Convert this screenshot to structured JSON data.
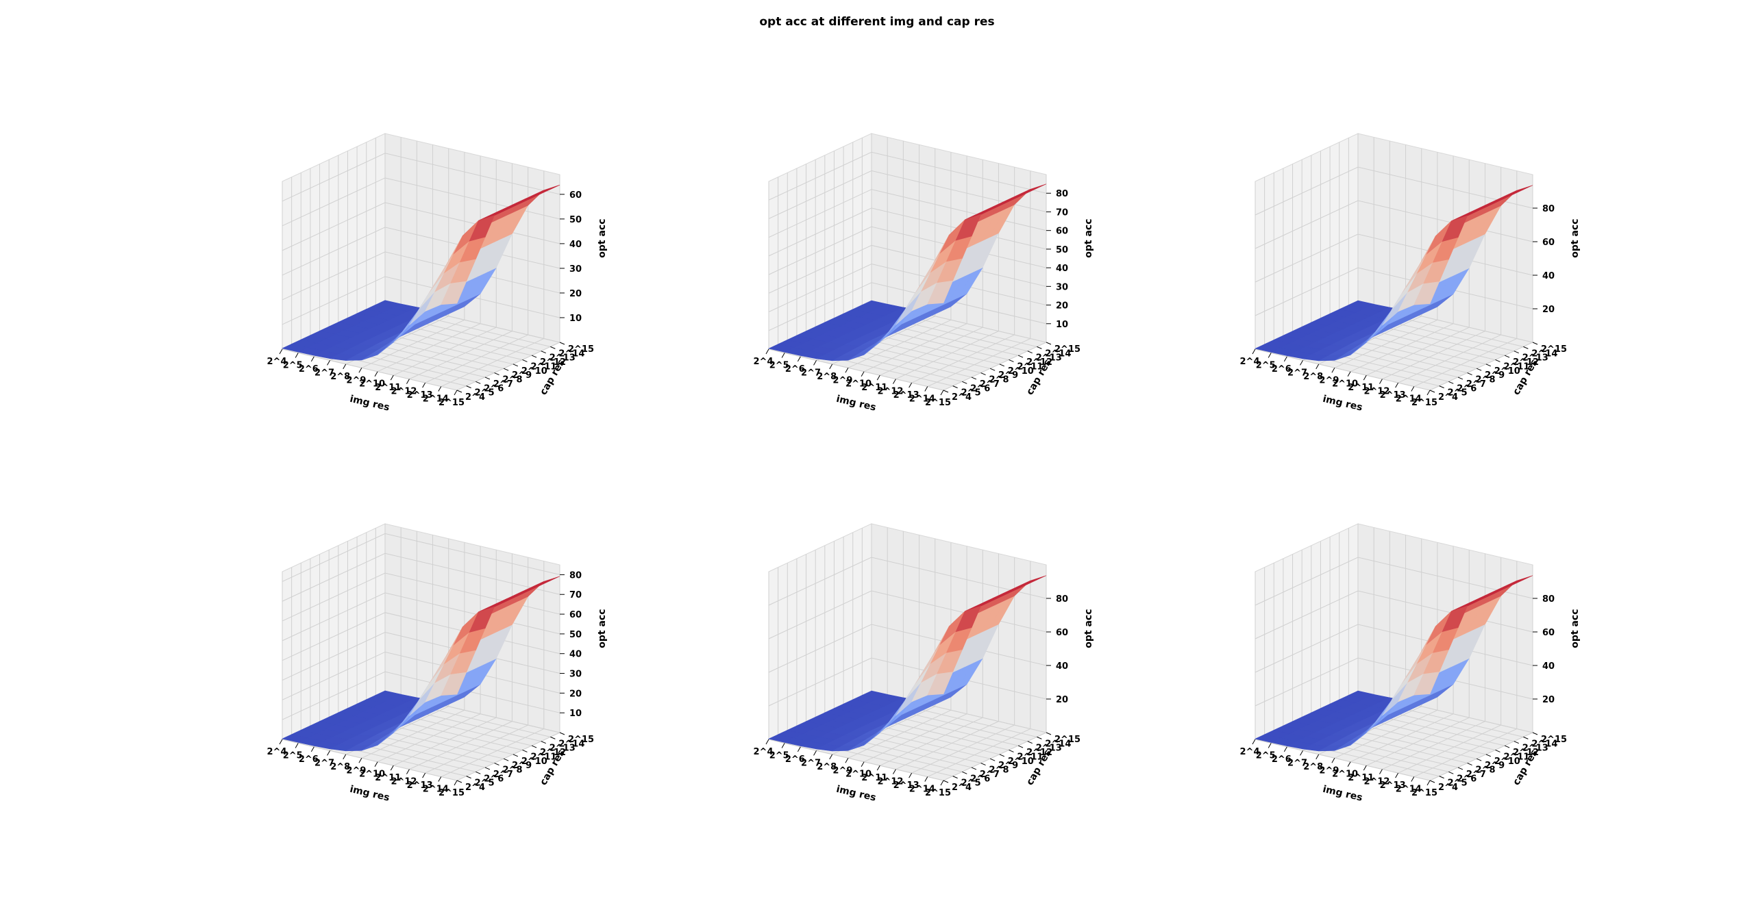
{
  "figure": {
    "title": "opt acc at different img and cap res"
  },
  "chart_data": [
    {
      "type": "surface3d",
      "xlabel": "img res",
      "ylabel": "cap res",
      "zlabel": "opt acc",
      "x_ticks": [
        "2^4",
        "2^5",
        "2^6",
        "2^7",
        "2^8",
        "2^9",
        "2^10",
        "2^11",
        "2^12",
        "2^13",
        "2^14",
        "2^15"
      ],
      "y_ticks": [
        "2^4",
        "2^5",
        "2^6",
        "2^7",
        "2^8",
        "2^9",
        "2^10",
        "2^11",
        "2^12",
        "2^13",
        "2^14",
        "2^15"
      ],
      "z_ticks": [
        10,
        20,
        30,
        40,
        50,
        60
      ],
      "zlim": [
        0,
        68
      ],
      "max_value": 66,
      "colormap": "coolwarm"
    },
    {
      "type": "surface3d",
      "xlabel": "img res",
      "ylabel": "cap res",
      "zlabel": "opt acc",
      "x_ticks": [
        "2^4",
        "2^5",
        "2^6",
        "2^7",
        "2^8",
        "2^9",
        "2^10",
        "2^11",
        "2^12",
        "2^13",
        "2^14",
        "2^15"
      ],
      "y_ticks": [
        "2^4",
        "2^5",
        "2^6",
        "2^7",
        "2^8",
        "2^9",
        "2^10",
        "2^11",
        "2^12",
        "2^13",
        "2^14",
        "2^15"
      ],
      "z_ticks": [
        10,
        20,
        30,
        40,
        50,
        60,
        70,
        80
      ],
      "zlim": [
        0,
        90
      ],
      "max_value": 88,
      "colormap": "coolwarm"
    },
    {
      "type": "surface3d",
      "xlabel": "img res",
      "ylabel": "cap res",
      "zlabel": "opt acc",
      "x_ticks": [
        "2^4",
        "2^5",
        "2^6",
        "2^7",
        "2^8",
        "2^9",
        "2^10",
        "2^11",
        "2^12",
        "2^13",
        "2^14",
        "2^15"
      ],
      "y_ticks": [
        "2^4",
        "2^5",
        "2^6",
        "2^7",
        "2^8",
        "2^9",
        "2^10",
        "2^11",
        "2^12",
        "2^13",
        "2^14",
        "2^15"
      ],
      "z_ticks": [
        20,
        40,
        60,
        80
      ],
      "zlim": [
        0,
        100
      ],
      "max_value": 97,
      "colormap": "coolwarm"
    },
    {
      "type": "surface3d",
      "xlabel": "img res",
      "ylabel": "cap res",
      "zlabel": "opt acc",
      "x_ticks": [
        "2^4",
        "2^5",
        "2^6",
        "2^7",
        "2^8",
        "2^9",
        "2^10",
        "2^11",
        "2^12",
        "2^13",
        "2^14",
        "2^15"
      ],
      "y_ticks": [
        "2^4",
        "2^5",
        "2^6",
        "2^7",
        "2^8",
        "2^9",
        "2^10",
        "2^11",
        "2^12",
        "2^13",
        "2^14",
        "2^15"
      ],
      "z_ticks": [
        10,
        20,
        30,
        40,
        50,
        60,
        70,
        80
      ],
      "zlim": [
        0,
        85
      ],
      "max_value": 82,
      "colormap": "coolwarm"
    },
    {
      "type": "surface3d",
      "xlabel": "img res",
      "ylabel": "cap res",
      "zlabel": "opt acc",
      "x_ticks": [
        "2^4",
        "2^5",
        "2^6",
        "2^7",
        "2^8",
        "2^9",
        "2^10",
        "2^11",
        "2^12",
        "2^13",
        "2^14",
        "2^15"
      ],
      "y_ticks": [
        "2^4",
        "2^5",
        "2^6",
        "2^7",
        "2^8",
        "2^9",
        "2^10",
        "2^11",
        "2^12",
        "2^13",
        "2^14",
        "2^15"
      ],
      "z_ticks": [
        20,
        40,
        60,
        80
      ],
      "zlim": [
        0,
        100
      ],
      "max_value": 97,
      "colormap": "coolwarm"
    },
    {
      "type": "surface3d",
      "xlabel": "img res",
      "ylabel": "cap res",
      "zlabel": "opt acc",
      "x_ticks": [
        "2^4",
        "2^5",
        "2^6",
        "2^7",
        "2^8",
        "2^9",
        "2^10",
        "2^11",
        "2^12",
        "2^13",
        "2^14",
        "2^15"
      ],
      "y_ticks": [
        "2^4",
        "2^5",
        "2^6",
        "2^7",
        "2^8",
        "2^9",
        "2^10",
        "2^11",
        "2^12",
        "2^13",
        "2^14",
        "2^15"
      ],
      "z_ticks": [
        20,
        40,
        60,
        80
      ],
      "zlim": [
        0,
        100
      ],
      "max_value": 97,
      "colormap": "coolwarm"
    }
  ]
}
